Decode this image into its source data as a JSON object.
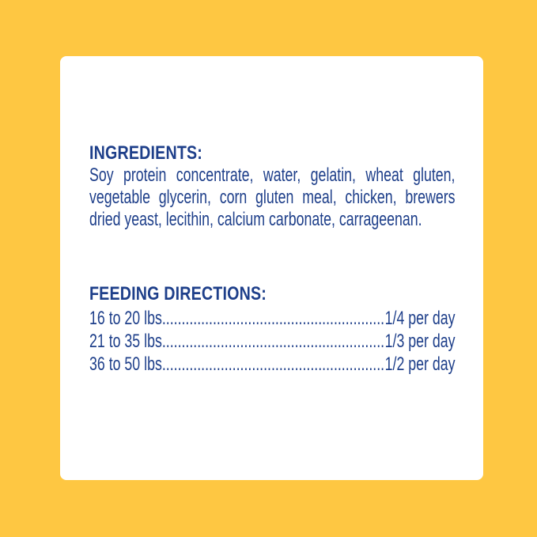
{
  "ingredients": {
    "heading": "INGREDIENTS:",
    "lines": [
      "Soy protein concentrate, water, gelatin, wheat gluten,",
      "vegetable glycerin, corn gluten meal, chicken, brewers",
      "dried yeast, lecithin, calcium carbonate, carrageenan."
    ]
  },
  "feeding": {
    "heading": "FEEDING DIRECTIONS:",
    "rows": [
      {
        "weight": "16 to 20 lbs",
        "amount": "1/4 per day"
      },
      {
        "weight": "21 to 35 lbs",
        "amount": "1/3 per day"
      },
      {
        "weight": "36 to 50 lbs",
        "amount": "1/2 per day"
      }
    ]
  },
  "colors": {
    "background": "#fec742",
    "text": "#1e3f8a",
    "card": "#ffffff"
  }
}
